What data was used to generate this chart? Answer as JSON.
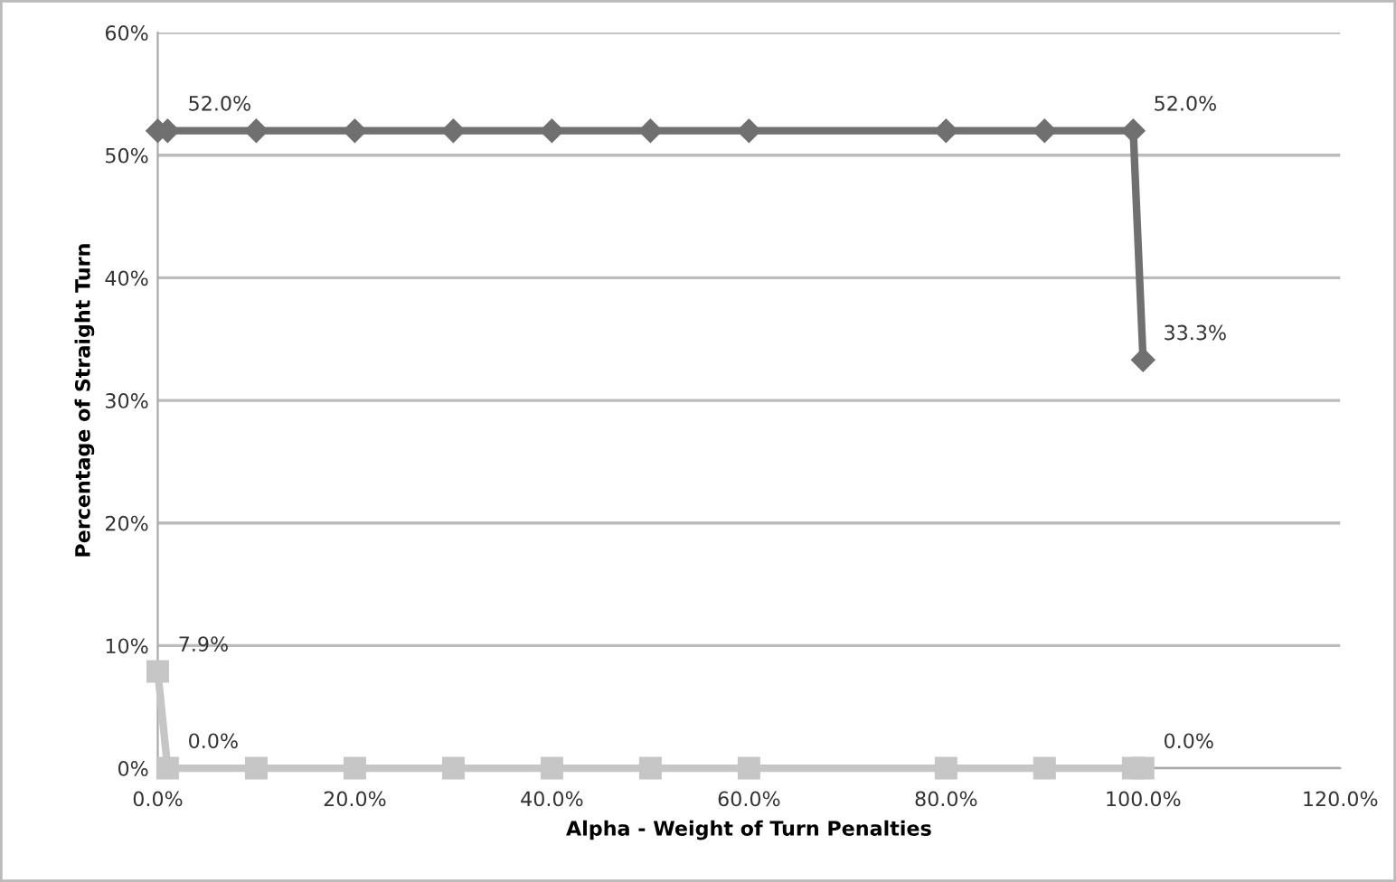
{
  "chart_data": {
    "type": "line",
    "xlabel": "Alpha - Weight of Turn Penalties",
    "ylabel": "Percentage of Straight Turn",
    "series": [
      {
        "color": "#707070",
        "marker": "diamond",
        "x": [
          0,
          1,
          10,
          20,
          30,
          40,
          50,
          60,
          80,
          90,
          99,
          100
        ],
        "values": [
          52.0,
          52.0,
          52,
          52,
          52,
          52,
          52,
          52,
          52,
          52,
          52.0,
          33.3
        ],
        "value_labels": [
          null,
          "52.0%",
          null,
          null,
          null,
          null,
          null,
          null,
          null,
          null,
          "52.0%",
          "33.3%"
        ]
      },
      {
        "color": "#c6c6c6",
        "marker": "square",
        "x": [
          0,
          1,
          10,
          20,
          30,
          40,
          50,
          60,
          80,
          90,
          99,
          100
        ],
        "values": [
          7.9,
          0.0,
          0,
          0,
          0,
          0,
          0,
          0,
          0,
          0,
          0,
          0.0
        ],
        "value_labels": [
          "7.9%",
          "0.0%",
          null,
          null,
          null,
          null,
          null,
          null,
          null,
          null,
          null,
          "0.0%"
        ]
      }
    ],
    "xlim": [
      0,
      120
    ],
    "xticks": [
      {
        "value": 0,
        "label": "0.0%"
      },
      {
        "value": 20,
        "label": "20.0%"
      },
      {
        "value": 40,
        "label": "40.0%"
      },
      {
        "value": 60,
        "label": "60.0%"
      },
      {
        "value": 80,
        "label": "80.0%"
      },
      {
        "value": 100,
        "label": "100.0%"
      },
      {
        "value": 120,
        "label": "120.0%"
      }
    ],
    "ylim": [
      0,
      60
    ],
    "yticks": [
      {
        "value": 0,
        "label": "0%"
      },
      {
        "value": 10,
        "label": "10%"
      },
      {
        "value": 20,
        "label": "20%"
      },
      {
        "value": 30,
        "label": "30%"
      },
      {
        "value": 40,
        "label": "40%"
      },
      {
        "value": 50,
        "label": "50%"
      },
      {
        "value": 60,
        "label": "60%"
      }
    ],
    "grid": "y"
  }
}
